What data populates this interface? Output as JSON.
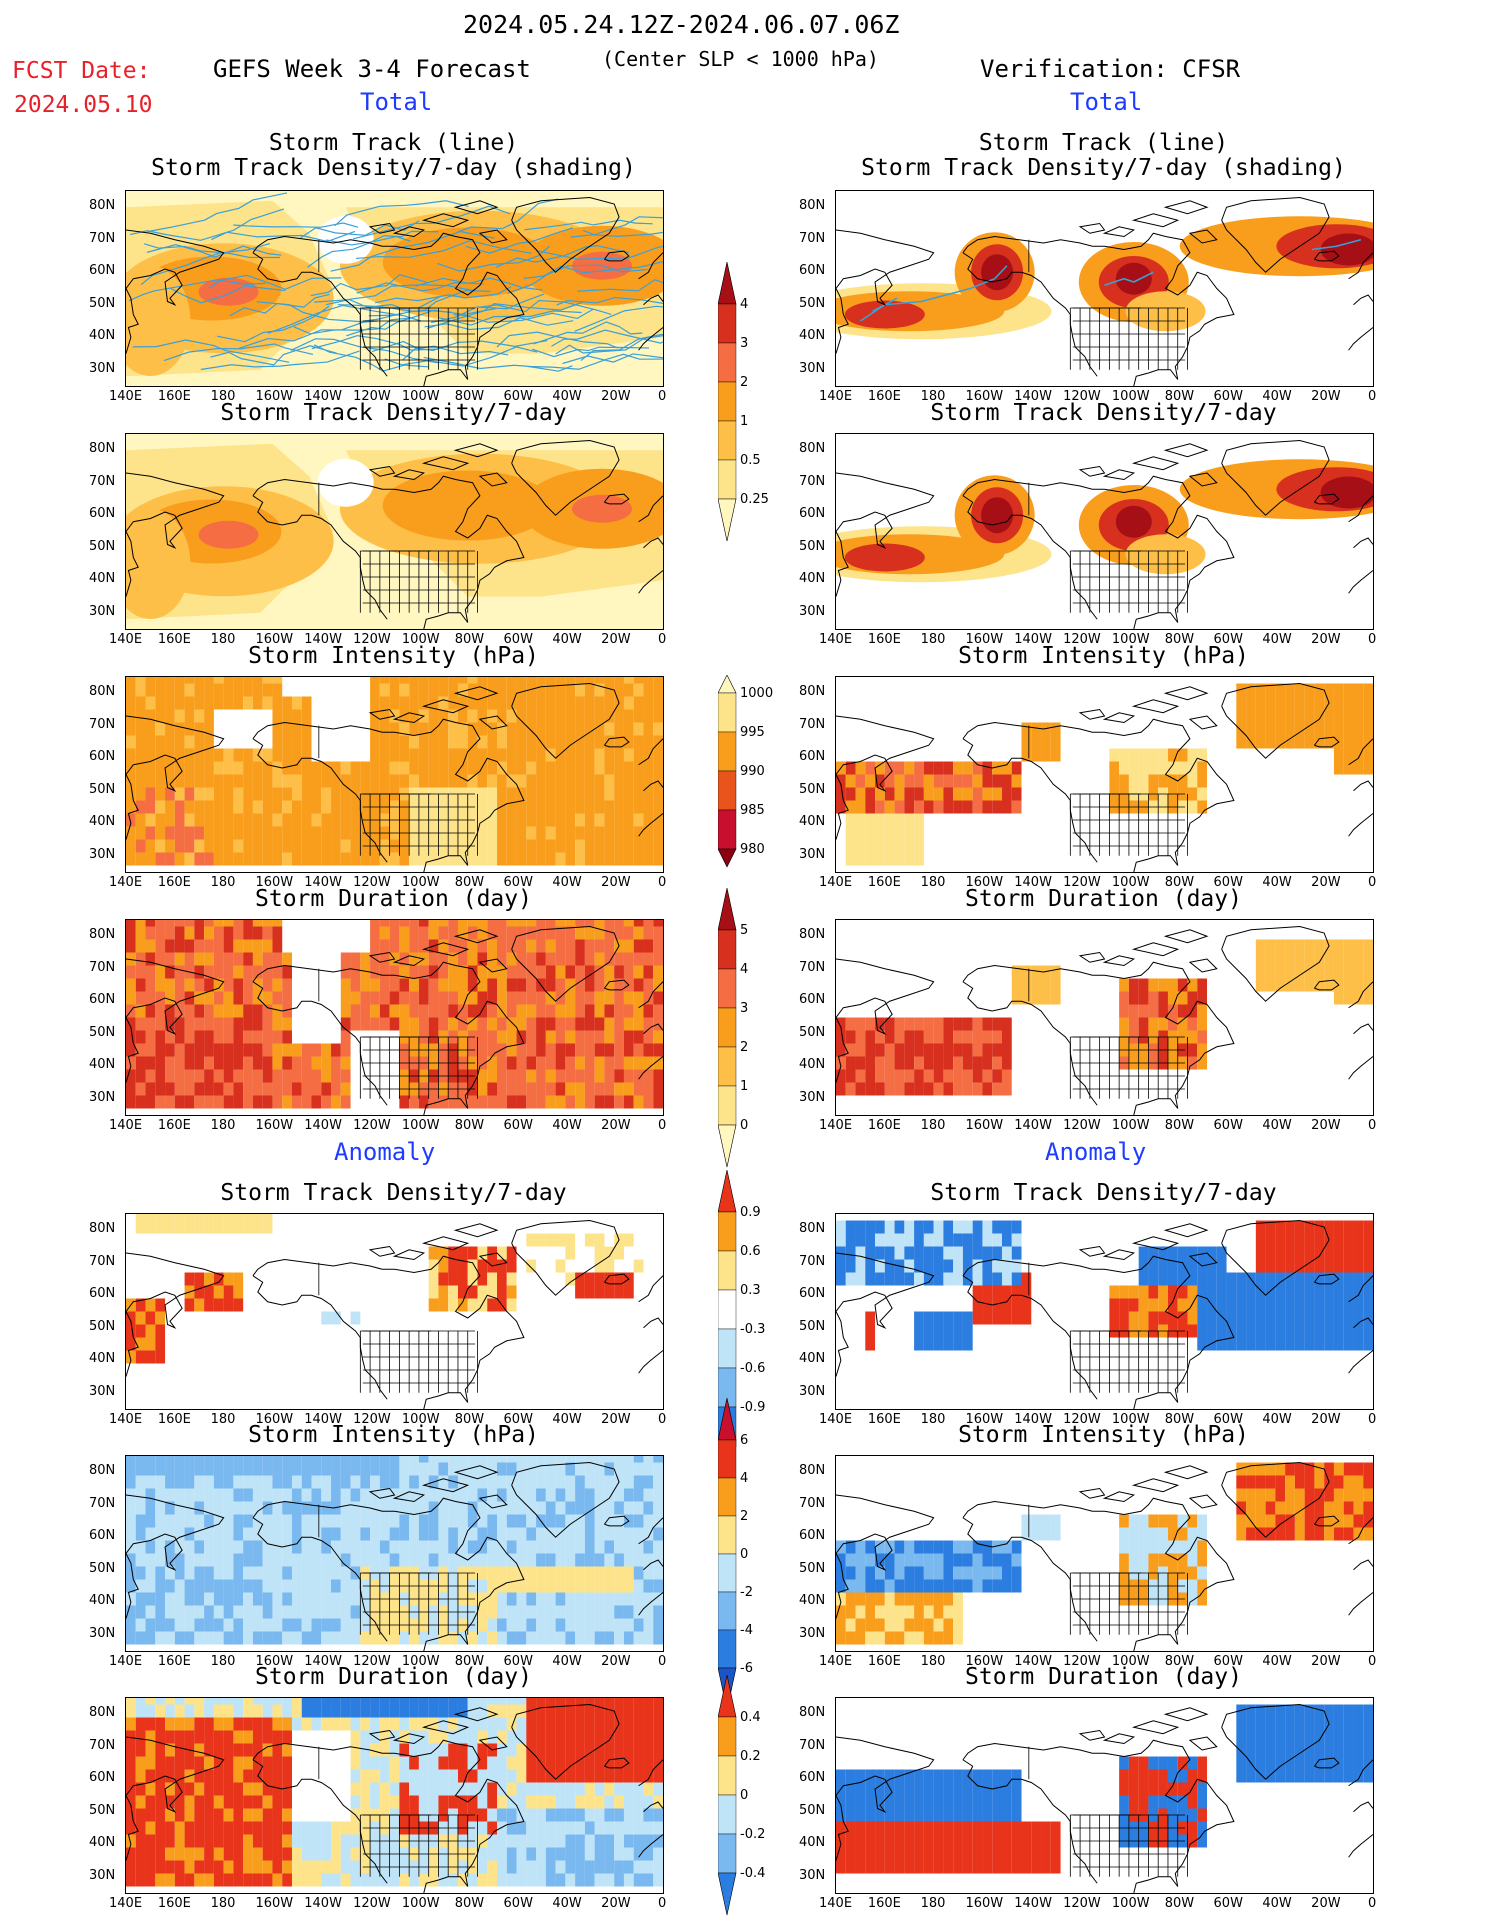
{
  "header": {
    "date_range": "2024.05.24.12Z-2024.06.07.06Z",
    "fcst_label": "FCST Date:",
    "fcst_date": "2024.05.10",
    "left_title": "GEFS Week 3-4 Forecast",
    "center_note": "(Center SLP < 1000 hPa)",
    "right_title": "Verification: CFSR"
  },
  "sections": {
    "total": "Total",
    "anomaly": "Anomaly"
  },
  "panel_titles": {
    "track_line": "Storm Track (line)",
    "track_density_shading": "Storm Track Density/7-day (shading)",
    "track_density": "Storm Track Density/7-day",
    "intensity": "Storm Intensity (hPa)",
    "duration": "Storm Duration (day)"
  },
  "axes": {
    "lat_labels": [
      "80N",
      "70N",
      "60N",
      "50N",
      "40N",
      "30N"
    ],
    "lon_labels": [
      "140E",
      "160E",
      "180",
      "160W",
      "140W",
      "120W",
      "100W",
      "80W",
      "60W",
      "40W",
      "20W",
      "0"
    ]
  },
  "colorbars": {
    "density_total": {
      "labels": [
        "4",
        "3",
        "2",
        "1",
        "0.5",
        "0.25"
      ],
      "colors": [
        "#a50f15",
        "#d7301f",
        "#f46d43",
        "#f99e1c",
        "#fdbf47",
        "#fde38a",
        "#fff6c0"
      ]
    },
    "intensity_total": {
      "labels": [
        "1000",
        "995",
        "990",
        "985",
        "980"
      ],
      "colors": [
        "#fff6c0",
        "#fde38a",
        "#f99e1c",
        "#e8541b",
        "#c8102e",
        "#8b0010"
      ]
    },
    "duration_total": {
      "labels": [
        "5",
        "4",
        "3",
        "2",
        "1",
        "0"
      ],
      "colors": [
        "#a50f15",
        "#d7301f",
        "#f46d43",
        "#f99e1c",
        "#fdbf47",
        "#fde38a",
        "#fff6c0"
      ]
    },
    "density_anom": {
      "labels": [
        "0.9",
        "0.6",
        "0.3",
        "-0.3",
        "-0.6",
        "-0.9"
      ],
      "colors": [
        "#e8341b",
        "#f99e1c",
        "#fde38a",
        "#ffffff",
        "#bfe3f7",
        "#7ab8f0",
        "#2c7de0",
        "#1c55c8"
      ]
    },
    "intensity_anom": {
      "labels": [
        "6",
        "4",
        "2",
        "0",
        "-2",
        "-4",
        "-6"
      ],
      "colors": [
        "#c8102e",
        "#e8341b",
        "#f99e1c",
        "#fde38a",
        "#bfe3f7",
        "#7ab8f0",
        "#2c7de0",
        "#1c55c8"
      ]
    },
    "duration_anom": {
      "labels": [
        "0.4",
        "0.2",
        "0",
        "-0.2",
        "-0.4"
      ],
      "colors": [
        "#e8341b",
        "#f99e1c",
        "#fde38a",
        "#bfe3f7",
        "#7ab8f0",
        "#2c7de0"
      ]
    }
  },
  "map_legend": {
    "ocean": "#ffffff",
    "coast": "#000000",
    "track_line": "#3aa0d8"
  }
}
